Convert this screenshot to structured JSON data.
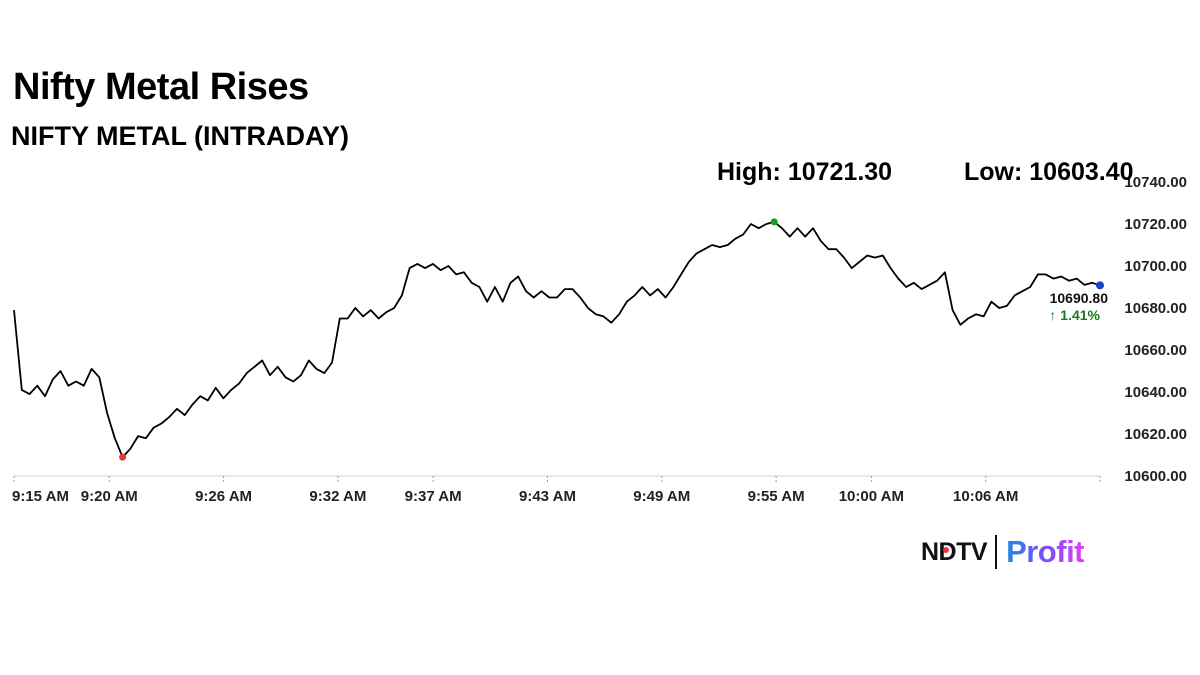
{
  "header": {
    "title": "Nifty Metal Rises",
    "subtitle": "NIFTY METAL (INTRADAY)"
  },
  "stats": {
    "high": "High: 10721.30",
    "low": "Low: 10603.40"
  },
  "last": {
    "value": "10690.80",
    "change": "↑ 1.41%",
    "change_color": "#1a7a1a"
  },
  "logo": {
    "ndtv": "NDTV",
    "profit": "Profit"
  },
  "chart_data": {
    "type": "line",
    "ylim": [
      10600,
      10740
    ],
    "yticks": [
      "10740.00",
      "10720.00",
      "10700.00",
      "10680.00",
      "10660.00",
      "10640.00",
      "10620.00",
      "10600.00"
    ],
    "xticks": [
      "9:15 AM",
      "9:20 AM",
      "9:26 AM",
      "9:32 AM",
      "9:37 AM",
      "9:43 AM",
      "9:49 AM",
      "9:55 AM",
      "10:00 AM",
      "10:06 AM"
    ],
    "x_start": "9:15 AM",
    "x_end": "10:12 AM",
    "line_color": "#000000",
    "low_marker_color": "#e53935",
    "high_marker_color": "#1a9a1a",
    "last_marker_color": "#1a3fcc",
    "series": [
      {
        "x": "9:15 AM",
        "y": 10679
      },
      {
        "x": "9:15 AM",
        "y": 10641
      },
      {
        "x": "9:15 AM",
        "y": 10639
      },
      {
        "x": "9:16 AM",
        "y": 10643
      },
      {
        "x": "9:16 AM",
        "y": 10638
      },
      {
        "x": "9:16 AM",
        "y": 10646
      },
      {
        "x": "9:16 AM",
        "y": 10650
      },
      {
        "x": "9:17 AM",
        "y": 10643
      },
      {
        "x": "9:17 AM",
        "y": 10645
      },
      {
        "x": "9:17 AM",
        "y": 10643
      },
      {
        "x": "9:17 AM",
        "y": 10651
      },
      {
        "x": "9:17 AM",
        "y": 10647
      },
      {
        "x": "9:18 AM",
        "y": 10630
      },
      {
        "x": "9:18 AM",
        "y": 10618
      },
      {
        "x": "9:18 AM",
        "y": 10609
      },
      {
        "x": "9:19 AM",
        "y": 10613
      },
      {
        "x": "9:19 AM",
        "y": 10619
      },
      {
        "x": "9:19 AM",
        "y": 10618
      },
      {
        "x": "9:19 AM",
        "y": 10623
      },
      {
        "x": "9:20 AM",
        "y": 10625
      },
      {
        "x": "9:20 AM",
        "y": 10628
      },
      {
        "x": "9:20 AM",
        "y": 10632
      },
      {
        "x": "9:21 AM",
        "y": 10629
      },
      {
        "x": "9:21 AM",
        "y": 10634
      },
      {
        "x": "9:21 AM",
        "y": 10638
      },
      {
        "x": "9:22 AM",
        "y": 10636
      },
      {
        "x": "9:22 AM",
        "y": 10642
      },
      {
        "x": "9:22 AM",
        "y": 10637
      },
      {
        "x": "9:23 AM",
        "y": 10641
      },
      {
        "x": "9:23 AM",
        "y": 10644
      },
      {
        "x": "9:23 AM",
        "y": 10649
      },
      {
        "x": "9:24 AM",
        "y": 10652
      },
      {
        "x": "9:24 AM",
        "y": 10655
      },
      {
        "x": "9:24 AM",
        "y": 10648
      },
      {
        "x": "9:25 AM",
        "y": 10652
      },
      {
        "x": "9:25 AM",
        "y": 10647
      },
      {
        "x": "9:25 AM",
        "y": 10645
      },
      {
        "x": "9:26 AM",
        "y": 10648
      },
      {
        "x": "9:26 AM",
        "y": 10655
      },
      {
        "x": "9:26 AM",
        "y": 10651
      },
      {
        "x": "9:27 AM",
        "y": 10649
      },
      {
        "x": "9:27 AM",
        "y": 10654
      },
      {
        "x": "9:27 AM",
        "y": 10675
      },
      {
        "x": "9:27 AM",
        "y": 10675
      },
      {
        "x": "9:28 AM",
        "y": 10680
      },
      {
        "x": "9:28 AM",
        "y": 10676
      },
      {
        "x": "9:28 AM",
        "y": 10679
      },
      {
        "x": "9:29 AM",
        "y": 10675
      },
      {
        "x": "9:29 AM",
        "y": 10678
      },
      {
        "x": "9:30 AM",
        "y": 10680
      },
      {
        "x": "9:30 AM",
        "y": 10686
      },
      {
        "x": "9:31 AM",
        "y": 10699
      },
      {
        "x": "9:31 AM",
        "y": 10701
      },
      {
        "x": "9:31 AM",
        "y": 10699
      },
      {
        "x": "9:32 AM",
        "y": 10701
      },
      {
        "x": "9:32 AM",
        "y": 10698
      },
      {
        "x": "9:32 AM",
        "y": 10700
      },
      {
        "x": "9:33 AM",
        "y": 10696
      },
      {
        "x": "9:33 AM",
        "y": 10697
      },
      {
        "x": "9:34 AM",
        "y": 10692
      },
      {
        "x": "9:34 AM",
        "y": 10690
      },
      {
        "x": "9:34 AM",
        "y": 10683
      },
      {
        "x": "9:35 AM",
        "y": 10690
      },
      {
        "x": "9:35 AM",
        "y": 10683
      },
      {
        "x": "9:35 AM",
        "y": 10692
      },
      {
        "x": "9:36 AM",
        "y": 10695
      },
      {
        "x": "9:36 AM",
        "y": 10688
      },
      {
        "x": "9:36 AM",
        "y": 10685
      },
      {
        "x": "9:37 AM",
        "y": 10688
      },
      {
        "x": "9:37 AM",
        "y": 10685
      },
      {
        "x": "9:37 AM",
        "y": 10685
      },
      {
        "x": "9:38 AM",
        "y": 10689
      },
      {
        "x": "9:38 AM",
        "y": 10689
      },
      {
        "x": "9:38 AM",
        "y": 10685
      },
      {
        "x": "9:39 AM",
        "y": 10680
      },
      {
        "x": "9:39 AM",
        "y": 10677
      },
      {
        "x": "9:40 AM",
        "y": 10676
      },
      {
        "x": "9:40 AM",
        "y": 10673
      },
      {
        "x": "9:41 AM",
        "y": 10677
      },
      {
        "x": "9:41 AM",
        "y": 10683
      },
      {
        "x": "9:41 AM",
        "y": 10686
      },
      {
        "x": "9:42 AM",
        "y": 10690
      },
      {
        "x": "9:42 AM",
        "y": 10686
      },
      {
        "x": "9:43 AM",
        "y": 10689
      },
      {
        "x": "9:43 AM",
        "y": 10685
      },
      {
        "x": "9:44 AM",
        "y": 10690
      },
      {
        "x": "9:44 AM",
        "y": 10696
      },
      {
        "x": "9:45 AM",
        "y": 10702
      },
      {
        "x": "9:45 AM",
        "y": 10706
      },
      {
        "x": "9:45 AM",
        "y": 10708
      },
      {
        "x": "9:46 AM",
        "y": 10710
      },
      {
        "x": "9:46 AM",
        "y": 10709
      },
      {
        "x": "9:47 AM",
        "y": 10710
      },
      {
        "x": "9:47 AM",
        "y": 10713
      },
      {
        "x": "9:48 AM",
        "y": 10715
      },
      {
        "x": "9:48 AM",
        "y": 10720
      },
      {
        "x": "9:49 AM",
        "y": 10718
      },
      {
        "x": "9:49 AM",
        "y": 10720
      },
      {
        "x": "9:50 AM",
        "y": 10721
      },
      {
        "x": "9:50 AM",
        "y": 10718
      },
      {
        "x": "9:51 AM",
        "y": 10714
      },
      {
        "x": "9:51 AM",
        "y": 10718
      },
      {
        "x": "9:52 AM",
        "y": 10714
      },
      {
        "x": "9:52 AM",
        "y": 10718
      },
      {
        "x": "9:53 AM",
        "y": 10712
      },
      {
        "x": "9:54 AM",
        "y": 10708
      },
      {
        "x": "9:54 AM",
        "y": 10708
      },
      {
        "x": "9:55 AM",
        "y": 10704
      },
      {
        "x": "9:55 AM",
        "y": 10699
      },
      {
        "x": "9:55 AM",
        "y": 10702
      },
      {
        "x": "9:56 AM",
        "y": 10705
      },
      {
        "x": "9:57 AM",
        "y": 10704
      },
      {
        "x": "9:57 AM",
        "y": 10705
      },
      {
        "x": "9:58 AM",
        "y": 10699
      },
      {
        "x": "9:58 AM",
        "y": 10694
      },
      {
        "x": "9:59 AM",
        "y": 10690
      },
      {
        "x": "9:59 AM",
        "y": 10692
      },
      {
        "x": "10:00 AM",
        "y": 10689
      },
      {
        "x": "10:00 AM",
        "y": 10691
      },
      {
        "x": "10:01 AM",
        "y": 10693
      },
      {
        "x": "10:01 AM",
        "y": 10697
      },
      {
        "x": "10:02 AM",
        "y": 10679
      },
      {
        "x": "10:02 AM",
        "y": 10672
      },
      {
        "x": "10:03 AM",
        "y": 10675
      },
      {
        "x": "10:04 AM",
        "y": 10677
      },
      {
        "x": "10:04 AM",
        "y": 10676
      },
      {
        "x": "10:05 AM",
        "y": 10683
      },
      {
        "x": "10:05 AM",
        "y": 10680
      },
      {
        "x": "10:06 AM",
        "y": 10681
      },
      {
        "x": "10:06 AM",
        "y": 10686
      },
      {
        "x": "10:07 AM",
        "y": 10688
      },
      {
        "x": "10:07 AM",
        "y": 10690
      },
      {
        "x": "10:08 AM",
        "y": 10696
      },
      {
        "x": "10:08 AM",
        "y": 10696
      },
      {
        "x": "10:09 AM",
        "y": 10694
      },
      {
        "x": "10:09 AM",
        "y": 10695
      },
      {
        "x": "10:10 AM",
        "y": 10693
      },
      {
        "x": "10:10 AM",
        "y": 10694
      },
      {
        "x": "10:11 AM",
        "y": 10691
      },
      {
        "x": "10:11 AM",
        "y": 10692
      },
      {
        "x": "10:12 AM",
        "y": 10690.8
      }
    ]
  }
}
